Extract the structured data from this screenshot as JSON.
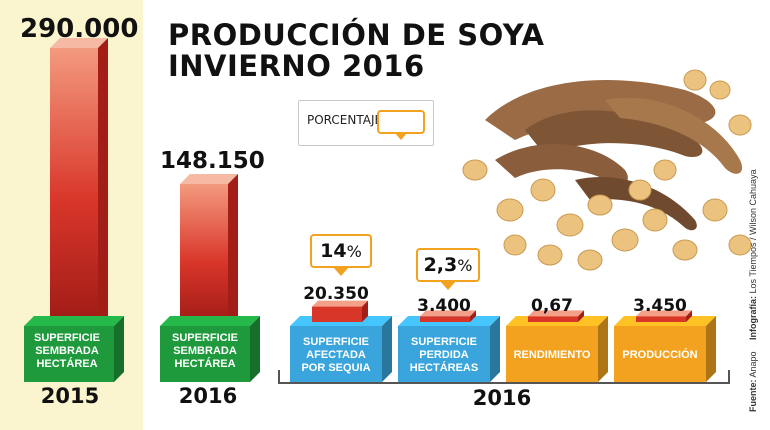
{
  "title_line1": "PRODUCCIÓN DE SOYA",
  "title_line2": "INVIERNO 2016",
  "legend": {
    "label": "PORCENTAJE",
    "swatch_color": "#f2a21e"
  },
  "chart_data": {
    "type": "bar",
    "title": "PRODUCCIÓN DE SOYA INVIERNO 2016",
    "bars": [
      {
        "label": [
          "SUPERFICIE",
          "SEMBRADA",
          "HECTÁREA"
        ],
        "year": "2015",
        "value": 290000,
        "value_label": "290.000",
        "base_color": "#1e9a3c"
      },
      {
        "label": [
          "SUPERFICIE",
          "SEMBRADA",
          "HECTÁREA"
        ],
        "year": "2016",
        "value": 148150,
        "value_label": "148.150",
        "base_color": "#1e9a3c"
      }
    ],
    "indicators_year": "2016",
    "indicators": [
      {
        "label": [
          "SUPERFICIE",
          "AFECTADA",
          "POR SEQUIA"
        ],
        "value_label": "20.350",
        "percent": "14",
        "percent_sign": "%",
        "base_color": "#3aa5dc",
        "bar_level": 0.55
      },
      {
        "label": [
          "SUPERFICIE",
          "PERDIDA",
          "HECTÁREAS"
        ],
        "value_label": "3.400",
        "percent": "2,3",
        "percent_sign": "%",
        "base_color": "#3aa5dc",
        "bar_level": 0.2
      },
      {
        "label": [
          "RENDIMIENTO"
        ],
        "value_label": "0,67",
        "base_color": "#f2a21e",
        "bar_level": 0.2
      },
      {
        "label": [
          "PRODUCCIÓN"
        ],
        "value_label": "3.450",
        "base_color": "#f2a21e",
        "bar_level": 0.2
      }
    ]
  },
  "credits": {
    "infografia_label": "Infografía:",
    "infografia_text": "Los Tiempos / Wilson Cahuaya",
    "fuente_label": "Fuente:",
    "fuente_text": "Anapo"
  },
  "colors": {
    "bar_red": "#d9362a",
    "bar_pink": "#f39a7e",
    "green": "#1e9a3c",
    "blue": "#3aa5dc",
    "orange": "#f2a21e"
  }
}
